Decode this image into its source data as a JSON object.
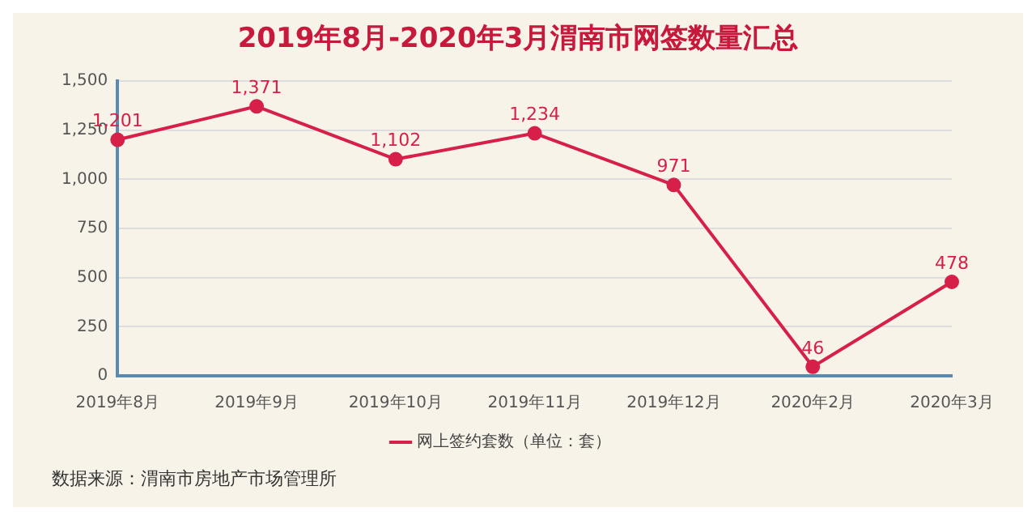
{
  "chart_data": {
    "type": "line",
    "title": "2019年8月-2020年3月渭南市网签数量汇总",
    "categories": [
      "2019年8月",
      "2019年9月",
      "2019年10月",
      "2019年11月",
      "2019年12月",
      "2020年2月",
      "2020年3月"
    ],
    "series": [
      {
        "name": "网上签约套数（单位：套）",
        "color": "#d6204a",
        "values": [
          1201,
          1371,
          1102,
          1234,
          971,
          46,
          478
        ],
        "value_labels": [
          "1,201",
          "1,371",
          "1,102",
          "1,234",
          "971",
          "46",
          "478"
        ]
      }
    ],
    "ylim": [
      0,
      1500
    ],
    "yticks": [
      {
        "value": 0,
        "label": "0"
      },
      {
        "value": 250,
        "label": "250"
      },
      {
        "value": 500,
        "label": "500"
      },
      {
        "value": 750,
        "label": "750"
      },
      {
        "value": 1000,
        "label": "1,000"
      },
      {
        "value": 1250,
        "label": "1,250"
      },
      {
        "value": 1500,
        "label": "1,500"
      }
    ],
    "grid": "y",
    "legend": "bottom",
    "marker": "circle",
    "line_style": "solid",
    "annotations": [
      "数据来源：渭南市房地产市场管理所"
    ]
  }
}
